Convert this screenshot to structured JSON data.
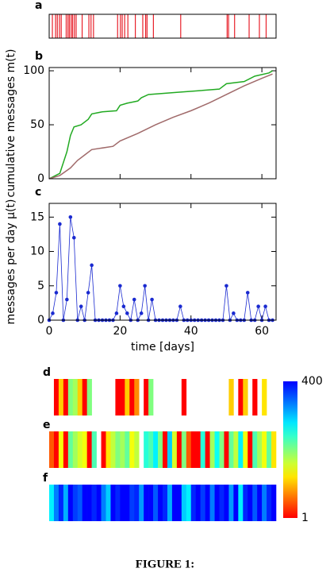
{
  "caption": "FIGURE 1:",
  "chart_data": [
    {
      "type": "raster",
      "label": "a",
      "color": "#e8202a",
      "xlim": [
        0,
        64
      ],
      "events": [
        0.9,
        1.8,
        2.3,
        2.9,
        3.4,
        4.8,
        5.3,
        5.7,
        6.2,
        6.6,
        7.1,
        7.6,
        9.3,
        11.2,
        11.8,
        12.5,
        19.3,
        20.1,
        20.6,
        21.3,
        22.2,
        24.3,
        26.4,
        27.2,
        27.6,
        29.4,
        37.1,
        50.2,
        50.6,
        52.3,
        56.4,
        59.3,
        61.2
      ]
    },
    {
      "type": "line",
      "label": "b",
      "ylabel": "cumulative messages m(t)",
      "xlim": [
        0,
        64
      ],
      "ylim": [
        0,
        103
      ],
      "yticks": [
        0,
        50,
        100
      ],
      "xticks": [
        0,
        20,
        40,
        60
      ],
      "series": [
        {
          "color": "#22aa22",
          "x": [
            0,
            3,
            5,
            6,
            7,
            9,
            11,
            12,
            15,
            19,
            20,
            22,
            25,
            26,
            28,
            36,
            48,
            50,
            55,
            58,
            62,
            63
          ],
          "values": [
            0,
            5,
            25,
            40,
            48,
            50,
            55,
            60,
            62,
            63,
            68,
            70,
            72,
            75,
            78,
            80,
            83,
            88,
            90,
            95,
            98,
            100
          ]
        },
        {
          "color": "#a06a6a",
          "x": [
            0,
            3,
            6,
            8,
            10,
            12,
            18,
            20,
            25,
            30,
            35,
            40,
            45,
            50,
            55,
            60,
            63
          ],
          "values": [
            0,
            3,
            10,
            17,
            22,
            27,
            30,
            35,
            42,
            50,
            57,
            63,
            70,
            78,
            86,
            93,
            97
          ]
        }
      ]
    },
    {
      "type": "line",
      "label": "c",
      "ylabel": "messages per day μ(t)",
      "xlabel": "time  [days]",
      "color": "#1a2ad0",
      "markers": true,
      "xlim": [
        0,
        64
      ],
      "ylim": [
        0,
        17
      ],
      "xticks": [
        0,
        20,
        40,
        60
      ],
      "yticks": [
        0,
        5,
        10,
        15
      ],
      "x": [
        0,
        1,
        2,
        3,
        4,
        5,
        6,
        7,
        8,
        9,
        10,
        11,
        12,
        13,
        14,
        15,
        16,
        17,
        18,
        19,
        20,
        21,
        22,
        23,
        24,
        25,
        26,
        27,
        28,
        29,
        30,
        31,
        32,
        33,
        34,
        35,
        36,
        37,
        38,
        39,
        40,
        41,
        42,
        43,
        44,
        45,
        46,
        47,
        48,
        49,
        50,
        51,
        52,
        53,
        54,
        55,
        56,
        57,
        58,
        59,
        60,
        61,
        62,
        63
      ],
      "values": [
        0,
        1,
        4,
        14,
        0,
        3,
        15,
        12,
        0,
        2,
        0,
        4,
        8,
        0,
        0,
        0,
        0,
        0,
        0,
        1,
        5,
        2,
        1,
        0,
        3,
        0,
        1,
        5,
        0,
        3,
        0,
        0,
        0,
        0,
        0,
        0,
        0,
        2,
        0,
        0,
        0,
        0,
        0,
        0,
        0,
        0,
        0,
        0,
        0,
        0,
        5,
        0,
        1,
        0,
        0,
        0,
        4,
        0,
        0,
        2,
        0,
        2,
        0,
        0
      ]
    },
    {
      "type": "heatmap",
      "lim": [
        1,
        400
      ],
      "ticks": [
        1,
        400
      ],
      "log": true,
      "strips": [
        {
          "label": "d",
          "values": [
            null,
            1,
            5,
            1,
            20,
            15,
            5,
            1,
            20,
            null,
            null,
            null,
            null,
            null,
            1,
            1,
            5,
            1,
            3,
            null,
            1,
            20,
            null,
            null,
            null,
            null,
            null,
            null,
            1,
            null,
            null,
            null,
            null,
            null,
            null,
            null,
            null,
            null,
            5,
            null,
            1,
            5,
            null,
            1,
            null,
            6,
            null,
            null
          ]
        },
        {
          "label": "e",
          "values": [
            2,
            1,
            8,
            1,
            25,
            15,
            10,
            8,
            1,
            30,
            null,
            1,
            6,
            12,
            20,
            15,
            25,
            8,
            12,
            null,
            40,
            30,
            60,
            20,
            1,
            80,
            10,
            1,
            20,
            2,
            1,
            1,
            40,
            1,
            15,
            50,
            20,
            1,
            25,
            12,
            60,
            8,
            1,
            30,
            15,
            8,
            25,
            6
          ]
        },
        {
          "label": "f",
          "values": [
            60,
            150,
            300,
            100,
            400,
            250,
            200,
            400,
            400,
            300,
            400,
            150,
            80,
            400,
            300,
            400,
            400,
            250,
            300,
            120,
            400,
            400,
            200,
            400,
            300,
            100,
            400,
            400,
            80,
            60,
            300,
            400,
            250,
            400,
            150,
            400,
            300,
            400,
            120,
            400,
            60,
            300,
            400,
            200,
            400,
            150,
            300,
            400
          ]
        }
      ]
    }
  ]
}
